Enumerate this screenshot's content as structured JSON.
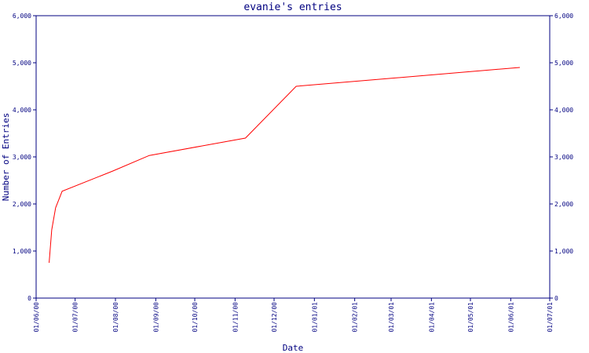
{
  "chart_data": {
    "type": "line",
    "title": "evanie's entries",
    "x_label": "Date",
    "y_label": "Number of Entries",
    "x": [
      "11/06/00",
      "13/06/00",
      "16/06/00",
      "21/06/00",
      "30/07/00",
      "27/08/00",
      "09/11/00",
      "18/12/00",
      "08/06/01"
    ],
    "series": [
      {
        "name": "entries",
        "color": "#ff0000",
        "values": [
          750,
          1450,
          1920,
          2270,
          2700,
          3030,
          3400,
          4500,
          4900
        ]
      }
    ],
    "xlim": [
      "01/06/00",
      "01/07/01"
    ],
    "xticks": [
      "01/06/00",
      "01/07/00",
      "01/08/00",
      "01/09/00",
      "01/10/00",
      "01/11/00",
      "01/12/00",
      "01/01/01",
      "01/02/01",
      "01/03/01",
      "01/04/01",
      "01/05/01",
      "01/06/01",
      "01/07/01"
    ],
    "ylim": [
      0,
      6000
    ],
    "yticks": [
      0,
      {
        "value": 1000,
        "label": "1,000"
      },
      {
        "value": 2000,
        "label": "2,000"
      },
      {
        "value": 3000,
        "label": "3,000"
      },
      {
        "value": 4000,
        "label": "4,000"
      },
      {
        "value": 5000,
        "label": "5,000"
      },
      {
        "value": 6000,
        "label": "6,000"
      }
    ],
    "axis_color": "#000080"
  }
}
